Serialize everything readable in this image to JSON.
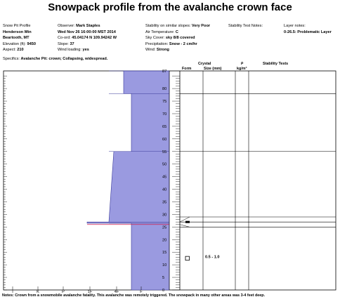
{
  "title": "Snowpack profile from the avalanche crown face",
  "header": {
    "col1": [
      {
        "label": "Snow Pit Profile",
        "value": ""
      },
      {
        "label": "Henderson Mtn",
        "value": ""
      },
      {
        "label": "Beartooth, MT",
        "value": ""
      },
      {
        "label": "Elevation (ft):",
        "value": "9450"
      },
      {
        "label": "Aspect:",
        "value": "210"
      }
    ],
    "col2": [
      {
        "label": "Observer:",
        "value": "Mark Staples"
      },
      {
        "label": "",
        "value": "Wed Nov 26 16:00:00 MST 2014"
      },
      {
        "label": "Co-ord:",
        "value": "45.04174 N 109.94242 W"
      },
      {
        "label": "Slope:",
        "value": "37"
      },
      {
        "label": "Wind loading:",
        "value": "yes"
      }
    ],
    "col3": [
      {
        "label": "Stability on similar slopes:",
        "value": "Very Poor"
      },
      {
        "label": "Air Temperature:",
        "value": "C"
      },
      {
        "label": "Sky Cover:",
        "value": "sky 8/8 covered"
      },
      {
        "label": "Precipitation:",
        "value": "Snow - 2 cm/hr"
      },
      {
        "label": "Wind:",
        "value": "Strong"
      }
    ],
    "col4_label": "Stability Test Notes:",
    "col5_label": "Layer notes:",
    "col5_value": "0-26.5: Problematic Layer",
    "specifics_label": "Specifics:",
    "specifics_value": "Avalanche Pit: crown; Collapsing, widespread."
  },
  "table_headers": {
    "crystal": "Crystal",
    "form": "Form",
    "size": "Size (mm)",
    "rho": "ρ",
    "density_unit": "kg/m³",
    "stability_tests": "Stability Tests"
  },
  "notes": "Notes: Crown from a snowmobile avalanche fatality. This avalanche was remotely triggered. The snowpack in many other areas was 3-4 feet deep.",
  "chart_data": {
    "type": "area",
    "title": "Snowpack profile from the avalanche crown face",
    "xlabel": "",
    "ylabel": "",
    "x_categories": [
      "I",
      "K",
      "P",
      "1F",
      "4F",
      "F"
    ],
    "y_range": [
      0,
      87
    ],
    "y_ticks": [
      0,
      5,
      10,
      15,
      20,
      25,
      30,
      35,
      40,
      45,
      50,
      55,
      60,
      65,
      70,
      75,
      80,
      87
    ],
    "hardness_layers": [
      {
        "bottom": 0,
        "top": 26.5,
        "hardness": "4F"
      },
      {
        "bottom": 26.5,
        "top": 27,
        "hardness": "K"
      },
      {
        "bottom": 27,
        "top": 55,
        "hardness": "1F to 4F"
      },
      {
        "bottom": 55,
        "top": 78,
        "hardness": "4F"
      },
      {
        "bottom": 78,
        "top": 87,
        "hardness": "F"
      }
    ],
    "crystal_layers": [
      {
        "depth": 27,
        "symbol": "bar"
      },
      {
        "depth": 12.5,
        "symbol": "square",
        "size": "0.5 - 1.0"
      }
    ],
    "layer_lines": [
      25,
      27,
      29,
      55,
      78
    ],
    "red_line_depth": 26,
    "colors": {
      "fill": "#9a9ae0",
      "stroke": "#3a3a9a",
      "red": "#d02050"
    }
  }
}
